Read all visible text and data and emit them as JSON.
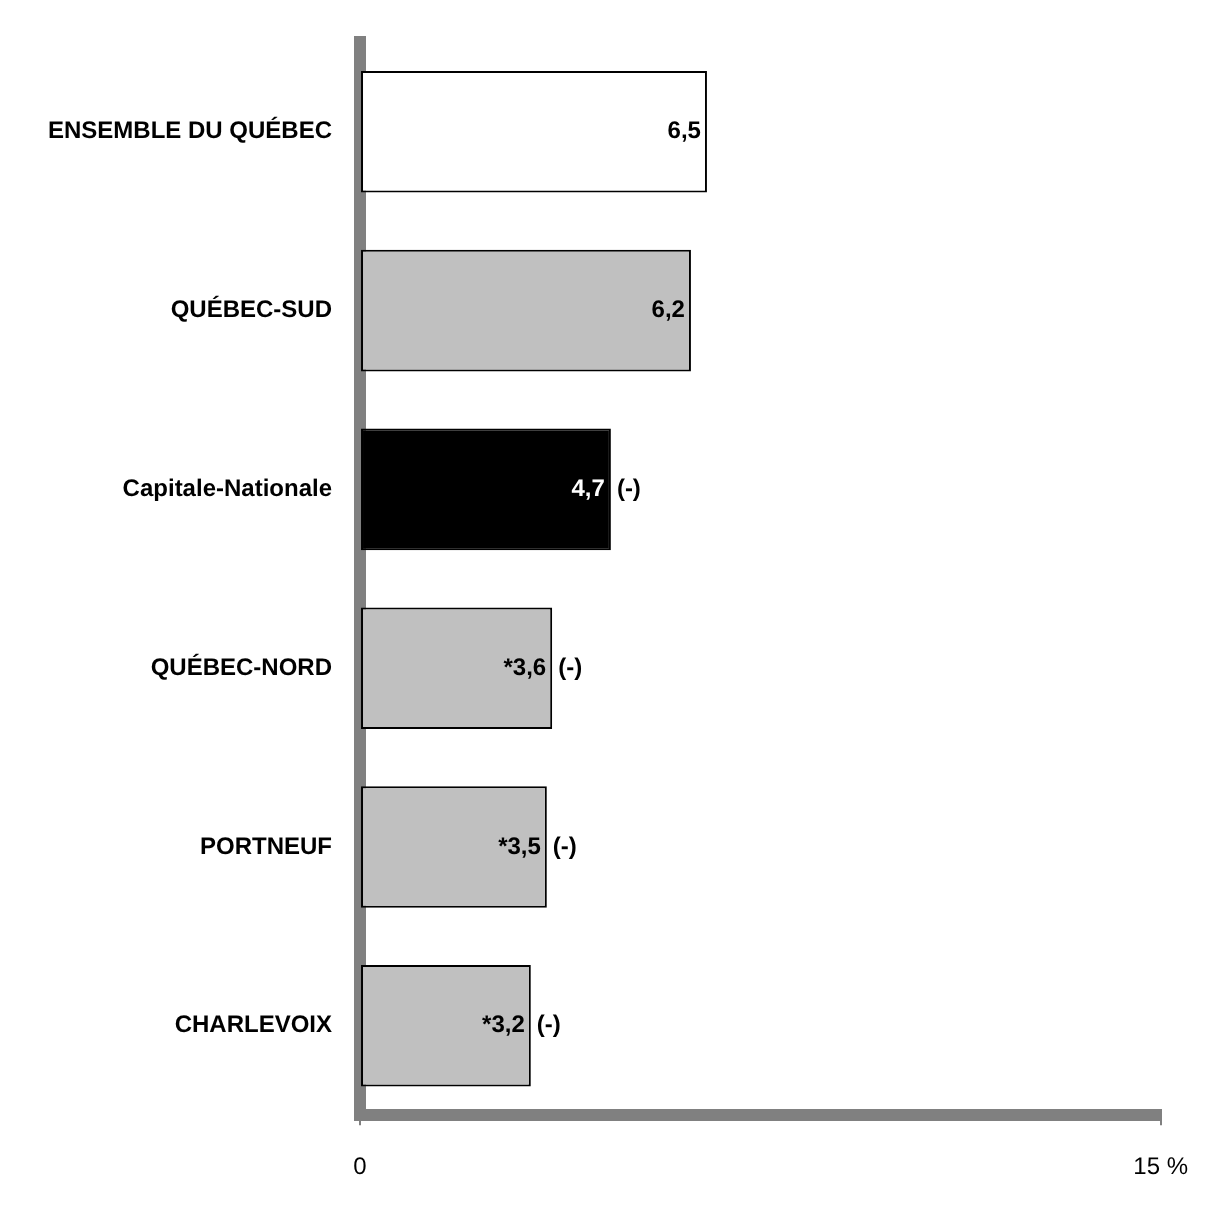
{
  "chart_data": {
    "type": "bar",
    "orientation": "horizontal",
    "categories": [
      "ENSEMBLE DU QUÉBEC",
      "QUÉBEC-SUD",
      "Capitale-Nationale",
      "QUÉBEC-NORD",
      "PORTNEUF",
      "CHARLEVOIX"
    ],
    "values": [
      6.5,
      6.2,
      4.7,
      3.6,
      3.5,
      3.2
    ],
    "colors": [
      "#ffffff",
      "#c0c0c0",
      "#000000",
      "#c0c0c0",
      "#c0c0c0",
      "#c0c0c0"
    ],
    "value_labels": [
      "6,5",
      "6,2",
      "4,7 (-)",
      "*3,6 (-)",
      "*3,5 (-)",
      "*3,2 (-)"
    ],
    "xlim": [
      0,
      15
    ],
    "xticks": [
      0,
      {
        "value": 15,
        "label": "15 %"
      }
    ],
    "grid": false,
    "legend": false
  }
}
